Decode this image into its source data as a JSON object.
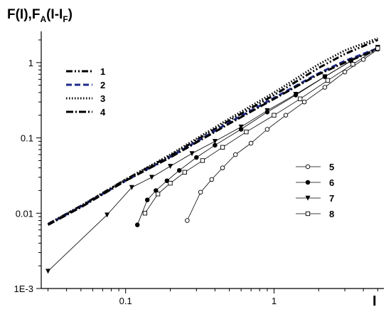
{
  "chart_data": {
    "type": "line",
    "ylabel": {
      "main": "F(I),F",
      "sub1": "A",
      "mid": "(I-I",
      "sub2": "F",
      "end": ")"
    },
    "xlabel": "I",
    "xscale": "log",
    "yscale": "log",
    "xlim": [
      0.027,
      5.5
    ],
    "ylim": [
      0.001,
      2.6
    ],
    "x_ticks": [
      {
        "value": 0.1,
        "label": "0.1"
      },
      {
        "value": 1,
        "label": "1"
      }
    ],
    "y_ticks": [
      {
        "value": 0.001,
        "label": "1E-3"
      },
      {
        "value": 0.01,
        "label": "0.01"
      },
      {
        "value": 0.1,
        "label": "0.1"
      },
      {
        "value": 1,
        "label": "1"
      }
    ],
    "grid": false,
    "legend_left_position": "upper-left",
    "legend_right_position": "right",
    "series": [
      {
        "name": "1",
        "style": "dash-dot-dot",
        "color": "#000000",
        "x": [
          0.03,
          0.05,
          0.1,
          0.2,
          0.5,
          1,
          2,
          3,
          5
        ],
        "y": [
          0.0072,
          0.0125,
          0.028,
          0.058,
          0.17,
          0.37,
          0.85,
          1.3,
          2.0
        ]
      },
      {
        "name": "2",
        "style": "dash",
        "color": "#1f2a8c",
        "x": [
          0.03,
          0.05,
          0.1,
          0.2,
          0.5,
          1,
          2,
          3,
          5
        ],
        "y": [
          0.0071,
          0.0123,
          0.027,
          0.056,
          0.16,
          0.34,
          0.72,
          1.05,
          1.55
        ]
      },
      {
        "name": "3",
        "style": "dot",
        "color": "#000000",
        "x": [
          0.03,
          0.05,
          0.1,
          0.2,
          0.5,
          1,
          2,
          3,
          5
        ],
        "y": [
          0.0072,
          0.0125,
          0.028,
          0.06,
          0.18,
          0.4,
          0.95,
          1.45,
          2.1
        ]
      },
      {
        "name": "4",
        "style": "dash-dot",
        "color": "#000000",
        "x": [
          0.03,
          0.05,
          0.1,
          0.2,
          0.5,
          1,
          2,
          3,
          5
        ],
        "y": [
          0.007,
          0.012,
          0.027,
          0.055,
          0.155,
          0.33,
          0.7,
          1.0,
          1.5
        ]
      },
      {
        "name": "5",
        "marker": "open-circle",
        "color": "#000000",
        "x": [
          0.26,
          0.32,
          0.38,
          0.45,
          0.55,
          0.7,
          0.9,
          1.2,
          1.6,
          2.2,
          3.0,
          4.0,
          5.0
        ],
        "y": [
          0.008,
          0.019,
          0.028,
          0.04,
          0.06,
          0.085,
          0.13,
          0.2,
          0.3,
          0.47,
          0.75,
          1.1,
          1.5
        ]
      },
      {
        "name": "6",
        "marker": "filled-circle",
        "color": "#000000",
        "x": [
          0.12,
          0.14,
          0.16,
          0.19,
          0.23,
          0.3,
          0.4,
          0.6,
          0.9,
          1.4,
          2.2,
          3.3,
          5.0
        ],
        "y": [
          0.007,
          0.015,
          0.02,
          0.027,
          0.037,
          0.055,
          0.08,
          0.13,
          0.22,
          0.37,
          0.65,
          1.05,
          1.6
        ]
      },
      {
        "name": "7",
        "marker": "filled-triangle-down",
        "color": "#000000",
        "x": [
          0.03,
          0.075,
          0.11,
          0.15,
          0.2,
          0.28,
          0.4,
          0.6,
          0.9,
          1.4,
          2.2,
          3.3,
          5.0
        ],
        "y": [
          0.0017,
          0.0095,
          0.022,
          0.03,
          0.042,
          0.062,
          0.09,
          0.14,
          0.23,
          0.38,
          0.65,
          1.05,
          1.6
        ]
      },
      {
        "name": "8",
        "marker": "open-square",
        "color": "#000000",
        "x": [
          0.135,
          0.165,
          0.2,
          0.25,
          0.33,
          0.45,
          0.65,
          1.0,
          1.5,
          2.3,
          3.4,
          5.0
        ],
        "y": [
          0.01,
          0.018,
          0.025,
          0.035,
          0.05,
          0.075,
          0.12,
          0.2,
          0.33,
          0.58,
          0.95,
          1.55
        ]
      }
    ]
  }
}
